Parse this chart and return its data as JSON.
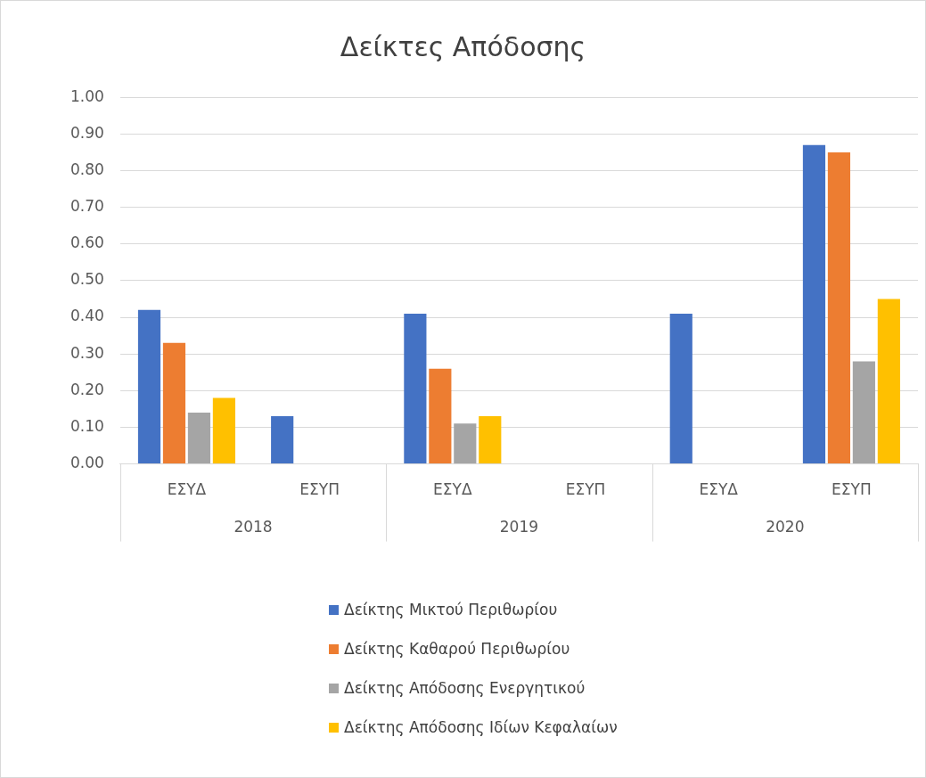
{
  "chart_data": {
    "type": "bar",
    "title": "Δείκτες Απόδοσης",
    "categories": [
      "ΕΣΥΔ",
      "ΕΣΥΠ",
      "ΕΣΥΔ",
      "ΕΣΥΠ",
      "ΕΣΥΔ",
      "ΕΣΥΠ"
    ],
    "annotations": [
      "2018",
      "2019",
      "2020"
    ],
    "series": [
      {
        "name": "Δείκτης Μικτού Περιθωρίου",
        "color": "#4472c4",
        "values": [
          0.42,
          0.13,
          0.41,
          null,
          0.41,
          0.87
        ]
      },
      {
        "name": "Δείκτης Καθαρού Περιθωρίου",
        "color": "#ed7d31",
        "values": [
          0.33,
          null,
          0.26,
          null,
          null,
          0.85
        ]
      },
      {
        "name": "Δείκτης Απόδοσης Ενεργητικού",
        "color": "#a5a5a5",
        "values": [
          0.14,
          null,
          0.11,
          null,
          null,
          0.28
        ]
      },
      {
        "name": "Δείκτης Απόδοσης Ιδίων Κεφαλαίων",
        "color": "#ffc000",
        "values": [
          0.18,
          null,
          0.13,
          null,
          null,
          0.45
        ]
      }
    ],
    "ylim": [
      0,
      1
    ],
    "yticks": [
      {
        "value": 0,
        "label": "0.00"
      },
      {
        "value": 0.1,
        "label": "0.10"
      },
      {
        "value": 0.2,
        "label": "0.20"
      },
      {
        "value": 0.3,
        "label": "0.30"
      },
      {
        "value": 0.4,
        "label": "0.40"
      },
      {
        "value": 0.5,
        "label": "0.50"
      },
      {
        "value": 0.6,
        "label": "0.60"
      },
      {
        "value": 0.7,
        "label": "0.70"
      },
      {
        "value": 0.8,
        "label": "0.80"
      },
      {
        "value": 0.9,
        "label": "0.90"
      },
      {
        "value": 1,
        "label": "1.00"
      }
    ],
    "grid": "y",
    "legend": "bottom"
  }
}
